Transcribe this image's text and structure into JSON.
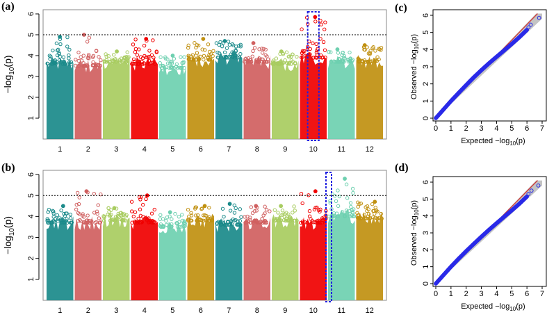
{
  "chart_data": [
    {
      "panel": "(a)",
      "type": "scatter",
      "subtype": "manhattan",
      "ylabel_prefix": "−log",
      "ylabel_sub": "10",
      "ylabel_suffix": "(p)",
      "ylim": [
        0,
        6.2
      ],
      "yticks": [
        "1",
        "2",
        "3",
        "4",
        "5",
        "6"
      ],
      "threshold": 5,
      "highlight_chromosome": "10",
      "chromosomes": [
        "1",
        "2",
        "3",
        "4",
        "5",
        "6",
        "7",
        "8",
        "9",
        "10",
        "11",
        "12"
      ],
      "chromosome_colors": [
        "#1a8a8a",
        "#d06060",
        "#a8cc60",
        "#f00000",
        "#6ed0b0",
        "#c09010",
        "#1a8a8a",
        "#d06060",
        "#a8cc60",
        "#f00000",
        "#6ed0b0",
        "#c09010"
      ],
      "chromosome_max": [
        4.9,
        5.0,
        4.2,
        4.8,
        4.0,
        4.8,
        4.7,
        4.6,
        4.2,
        5.85,
        4.3,
        4.5
      ],
      "chromosome_typical": [
        3.6,
        3.5,
        3.7,
        3.6,
        3.4,
        3.8,
        3.9,
        3.7,
        3.6,
        3.9,
        3.7,
        3.7
      ]
    },
    {
      "panel": "(b)",
      "type": "scatter",
      "subtype": "manhattan",
      "ylabel_prefix": "−log",
      "ylabel_sub": "10",
      "ylabel_suffix": "(p)",
      "ylim": [
        0,
        6.2
      ],
      "yticks": [
        "1",
        "2",
        "3",
        "4",
        "5",
        "6"
      ],
      "threshold": 5,
      "highlight_chromosome": "11",
      "chromosomes": [
        "1",
        "2",
        "3",
        "4",
        "5",
        "6",
        "7",
        "8",
        "9",
        "10",
        "11",
        "12"
      ],
      "chromosome_colors": [
        "#1a8a8a",
        "#d06060",
        "#a8cc60",
        "#f00000",
        "#6ed0b0",
        "#c09010",
        "#1a8a8a",
        "#d06060",
        "#a8cc60",
        "#f00000",
        "#6ed0b0",
        "#c09010"
      ],
      "chromosome_max": [
        4.5,
        5.2,
        4.4,
        5.0,
        4.2,
        4.5,
        4.6,
        4.5,
        4.5,
        5.2,
        5.8,
        4.7
      ],
      "chromosome_typical": [
        3.7,
        3.7,
        3.8,
        3.7,
        3.5,
        3.8,
        3.6,
        3.7,
        3.8,
        3.7,
        4.0,
        3.9
      ]
    },
    {
      "panel": "(c)",
      "type": "scatter",
      "subtype": "qq",
      "xlabel_prefix": "Expected  −log",
      "ylabel_prefix": "Observed  −log",
      "label_sub": "10",
      "label_suffix": "(p)",
      "xlim": [
        0,
        7
      ],
      "ylim": [
        0,
        6
      ],
      "xticks": [
        "0",
        "1",
        "2",
        "3",
        "4",
        "5",
        "6",
        "7"
      ],
      "yticks": [
        "0",
        "1",
        "2",
        "3",
        "4",
        "5",
        "6"
      ],
      "points": [
        [
          0,
          0
        ],
        [
          0.5,
          0.5
        ],
        [
          1,
          1
        ],
        [
          1.5,
          1.47
        ],
        [
          2,
          1.93
        ],
        [
          2.5,
          2.38
        ],
        [
          3,
          2.8
        ],
        [
          3.5,
          3.2
        ],
        [
          4,
          3.58
        ],
        [
          4.5,
          3.95
        ],
        [
          5,
          4.33
        ],
        [
          5.5,
          4.72
        ],
        [
          6,
          5.15
        ],
        [
          6.1,
          5.3
        ],
        [
          6.25,
          5.45
        ],
        [
          6.8,
          5.85
        ]
      ]
    },
    {
      "panel": "(d)",
      "type": "scatter",
      "subtype": "qq",
      "xlabel_prefix": "Expected  −log",
      "ylabel_prefix": "Observed  −log",
      "label_sub": "10",
      "label_suffix": "(p)",
      "xlim": [
        0,
        7
      ],
      "ylim": [
        0,
        6
      ],
      "xticks": [
        "0",
        "1",
        "2",
        "3",
        "4",
        "5",
        "6",
        "7"
      ],
      "yticks": [
        "0",
        "1",
        "2",
        "3",
        "4",
        "5",
        "6"
      ],
      "points": [
        [
          0,
          0
        ],
        [
          0.5,
          0.5
        ],
        [
          1,
          1
        ],
        [
          1.5,
          1.47
        ],
        [
          2,
          1.92
        ],
        [
          2.5,
          2.35
        ],
        [
          3,
          2.77
        ],
        [
          3.5,
          3.18
        ],
        [
          4,
          3.57
        ],
        [
          4.5,
          3.95
        ],
        [
          5,
          4.33
        ],
        [
          5.5,
          4.72
        ],
        [
          6,
          5.15
        ],
        [
          6.1,
          5.3
        ],
        [
          6.3,
          5.5
        ],
        [
          6.75,
          5.8
        ]
      ]
    }
  ],
  "colors": {
    "highlight_box": "#2020e0",
    "qq_points": "#2a2ae8",
    "qq_line": "#d03030",
    "qq_band": "#b0b0b0",
    "threshold": "#000000"
  }
}
